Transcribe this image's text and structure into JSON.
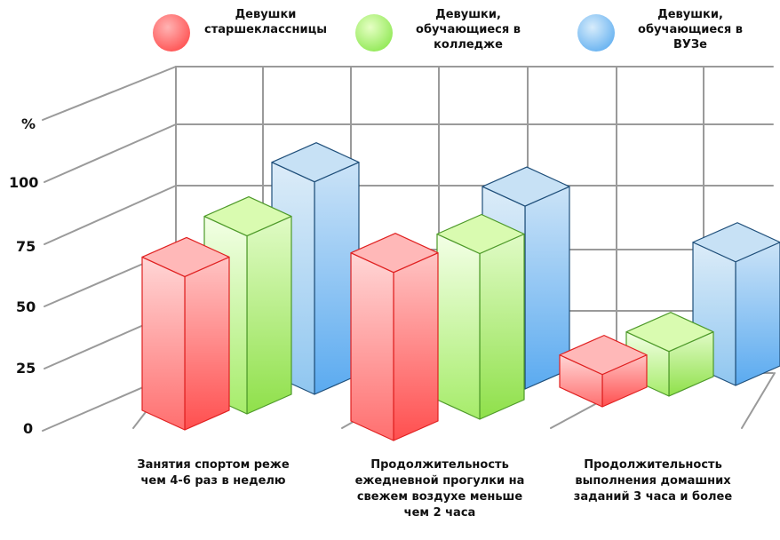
{
  "chart_data": {
    "type": "bar",
    "ylabel": "%",
    "y_ticks": [
      "0",
      "25",
      "50",
      "75",
      "100"
    ],
    "ylim": [
      0,
      110
    ],
    "categories": [
      "Занятия спортом реже чем 4-6 раз в неделю",
      "Продолжительность ежедневной прогулки на свежем воздухе меньше чем 2 часа",
      "Продолжительность выполнения домашних заданий 3 часа и более"
    ],
    "series": [
      {
        "name": "Девушки старшеклассницы",
        "values": [
          70,
          76,
          21
        ]
      },
      {
        "name": "Девушки, обучающиеся в колледже",
        "values": [
          80,
          75,
          26
        ]
      },
      {
        "name": "Девушки, обучающиеся в ВУЗе",
        "values": [
          94,
          82,
          58
        ]
      }
    ],
    "colors": {
      "red": {
        "top": "#ffb8b8",
        "front": [
          "#ffd6d6",
          "#ff6f6f"
        ],
        "side": [
          "#ffc4c4",
          "#ff4f4f"
        ],
        "stroke": "#e02020"
      },
      "green": {
        "top": "#d9fbb0",
        "front": [
          "#f3ffe6",
          "#a6ec6a"
        ],
        "side": [
          "#e0fbc6",
          "#8fe04a"
        ],
        "stroke": "#4e9a2a"
      },
      "blue": {
        "top": "#c7e1f5",
        "front": [
          "#dcecf8",
          "#8fc6f0"
        ],
        "side": [
          "#cbe3f7",
          "#5aaaf0"
        ],
        "stroke": "#1f4f7a"
      }
    },
    "series_colors": [
      "red",
      "green",
      "blue"
    ],
    "legend_position": "top",
    "grid": true
  }
}
